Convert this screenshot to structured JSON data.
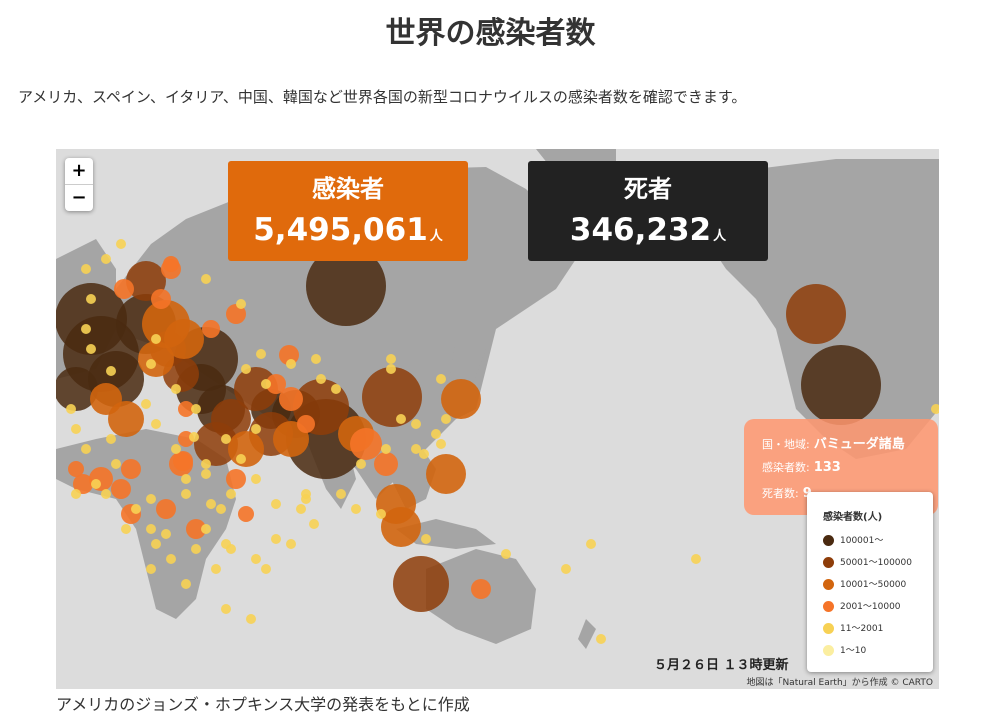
{
  "page": {
    "title": "世界の感染者数",
    "description": "アメリカ、スペイン、イタリア、中国、韓国など世界各国の新型コロナウイルスの感染者数を確認できます。",
    "source_note": "アメリカのジョンズ・ホプキンス大学の発表をもとに作成"
  },
  "map": {
    "zoom_in": "+",
    "zoom_out": "−",
    "updated": "５月２６日 １３時更新",
    "attribution": "地図は「Natural Earth」から作成 © CARTO",
    "land_color": "#a5a5a5",
    "sea_color": "#dcdcdc"
  },
  "stats": {
    "cases_label": "感染者",
    "cases_value": "5,495,061",
    "cases_unit": "人",
    "deaths_label": "死者",
    "deaths_value": "346,232",
    "deaths_unit": "人"
  },
  "tooltip": {
    "region_label": "国・地域:",
    "region_value": "バミューダ諸島",
    "cases_label": "感染者数:",
    "cases_value": "133",
    "deaths_label": "死者数:",
    "deaths_value": "9"
  },
  "legend": {
    "title": "感染者数(人)",
    "items": [
      {
        "label": "100001〜",
        "color": "#4a2a10"
      },
      {
        "label": "50001〜100000",
        "color": "#8e3d09"
      },
      {
        "label": "10001〜50000",
        "color": "#d2650e"
      },
      {
        "label": "2001〜10000",
        "color": "#f57428"
      },
      {
        "label": "11〜2001",
        "color": "#f7d154"
      },
      {
        "label": "1〜10",
        "color": "#fbeea0"
      }
    ]
  }
}
